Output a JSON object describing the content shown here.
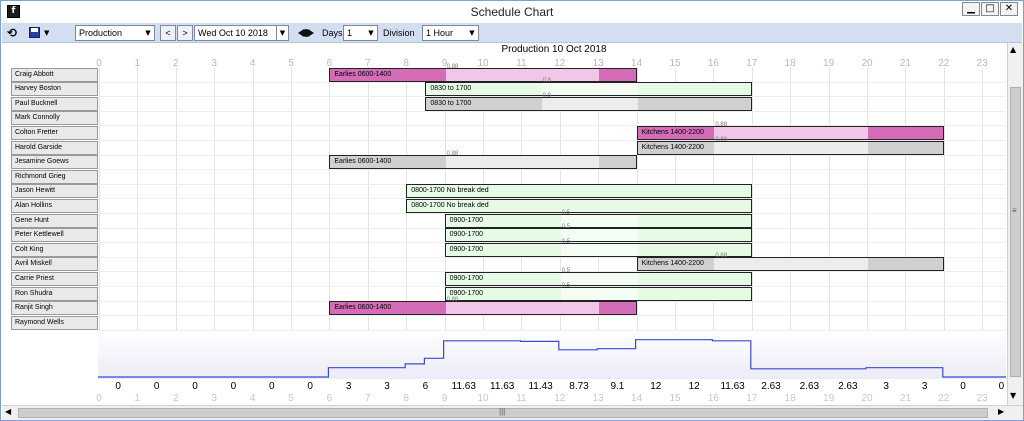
{
  "window": {
    "title": "Schedule Chart",
    "app_icon": "f"
  },
  "toolbar": {
    "department": "Production",
    "date": "Wed  Oct 10 2018",
    "days_label": "Days",
    "days_value": "1",
    "division_label": "Division",
    "division_value": "1 Hour",
    "prev_label": "<",
    "next_label": ">"
  },
  "icons": [
    "refresh-icon",
    "save-icon",
    "calendar-icon",
    "today-icon",
    "minimize-icon",
    "maximize-icon",
    "close-icon"
  ],
  "chart_title": "Production 10 Oct 2018",
  "hours": [
    "0",
    "1",
    "2",
    "3",
    "4",
    "5",
    "6",
    "7",
    "8",
    "9",
    "10",
    "11",
    "12",
    "13",
    "14",
    "15",
    "16",
    "17",
    "18",
    "19",
    "20",
    "21",
    "22",
    "23"
  ],
  "employees": [
    "Craig Abbott",
    "Harvey Boston",
    "Paul Bucknell",
    "Mark Connolly",
    "Colton Fretter",
    "Harold Garside",
    "Jesamine Goews",
    "Richmond Grieg",
    "Jason Hewitt",
    "Alan Hollins",
    "Gene Hunt",
    "Peter Kettlewell",
    "Colt King",
    "Avril Miskell",
    "Carrie Priest",
    "Ron Shudra",
    "Ranjit Singh",
    "Raymond Wells"
  ],
  "colors": {
    "pink": "#d46cb8",
    "pink_light": "#f2c6e6",
    "green": "#e6fbe6",
    "green_light": "#f4fdf4",
    "grey": "#d0d0d0",
    "grey_light": "#ececec",
    "staff_line": "#3a4ad8"
  },
  "shifts": [
    {
      "row": 0,
      "start": 6,
      "end": 14,
      "label": "Earlies 0600-1400",
      "style": "pink",
      "break_start": 9,
      "break_end": 13,
      "break_label": "0.88"
    },
    {
      "row": 1,
      "start": 8.5,
      "end": 17,
      "label": "0830 to 1700",
      "style": "green",
      "break_start": 11.5,
      "break_end": 14,
      "break_label": "0.8"
    },
    {
      "row": 2,
      "start": 8.5,
      "end": 17,
      "label": "0830 to 1700",
      "style": "grey",
      "break_start": 11.5,
      "break_end": 14,
      "break_label": "0.8"
    },
    {
      "row": 4,
      "start": 14,
      "end": 22,
      "label": "Kitchens 1400-2200",
      "style": "pink",
      "break_start": 16,
      "break_end": 20,
      "break_label": "0.88"
    },
    {
      "row": 5,
      "start": 14,
      "end": 22,
      "label": "Kitchens 1400-2200",
      "style": "grey",
      "break_start": 16,
      "break_end": 20,
      "break_label": "0.88"
    },
    {
      "row": 6,
      "start": 6,
      "end": 14,
      "label": "Earlies 0600-1400",
      "style": "grey",
      "break_start": 9,
      "break_end": 13,
      "break_label": "0.88"
    },
    {
      "row": 8,
      "start": 8,
      "end": 17,
      "label": "0800-1700 No break ded",
      "style": "green",
      "break_start": null,
      "break_end": null,
      "break_label": ""
    },
    {
      "row": 9,
      "start": 8,
      "end": 17,
      "label": "0800-1700 No break ded",
      "style": "green",
      "break_start": null,
      "break_end": null,
      "break_label": ""
    },
    {
      "row": 10,
      "start": 9,
      "end": 17,
      "label": "0900-1700",
      "style": "green",
      "break_start": 12,
      "break_end": 14,
      "break_label": "0.5"
    },
    {
      "row": 11,
      "start": 9,
      "end": 17,
      "label": "0900-1700",
      "style": "green",
      "break_start": 12,
      "break_end": 14,
      "break_label": "0.5"
    },
    {
      "row": 12,
      "start": 9,
      "end": 17,
      "label": "0900-1700",
      "style": "green",
      "break_start": 12,
      "break_end": 14,
      "break_label": "0.5"
    },
    {
      "row": 13,
      "start": 14,
      "end": 22,
      "label": "Kitchens 1400-2200",
      "style": "grey",
      "break_start": 16,
      "break_end": 20,
      "break_label": "0.88"
    },
    {
      "row": 14,
      "start": 9,
      "end": 17,
      "label": "0900-1700",
      "style": "green",
      "break_start": 12,
      "break_end": 14,
      "break_label": "0.5"
    },
    {
      "row": 15,
      "start": 9,
      "end": 17,
      "label": "0900-1700",
      "style": "green",
      "break_start": 12,
      "break_end": 14,
      "break_label": "0.5"
    },
    {
      "row": 16,
      "start": 6,
      "end": 14,
      "label": "Earlies 0600-1400",
      "style": "pink",
      "break_start": 9,
      "break_end": 13,
      "break_label": "0.88"
    }
  ],
  "staff_counts": [
    "0",
    "0",
    "0",
    "0",
    "0",
    "0",
    "3",
    "3",
    "6",
    "11.63",
    "11.63",
    "11.43",
    "8.73",
    "9.1",
    "12",
    "12",
    "11.63",
    "2.63",
    "2.63",
    "2.63",
    "3",
    "3",
    "0",
    "0"
  ],
  "staff_curve": [
    [
      0,
      0
    ],
    [
      6,
      0
    ],
    [
      6,
      3
    ],
    [
      8,
      3
    ],
    [
      8,
      4.2
    ],
    [
      8.5,
      4.2
    ],
    [
      8.5,
      6
    ],
    [
      9,
      6
    ],
    [
      9,
      11.63
    ],
    [
      11,
      11.63
    ],
    [
      11,
      11.43
    ],
    [
      12,
      11.43
    ],
    [
      12,
      8.73
    ],
    [
      13,
      8.73
    ],
    [
      13,
      9.1
    ],
    [
      14,
      9.1
    ],
    [
      14,
      12
    ],
    [
      16,
      12
    ],
    [
      16,
      11.63
    ],
    [
      17,
      11.63
    ],
    [
      17,
      2.63
    ],
    [
      20,
      2.63
    ],
    [
      20,
      3
    ],
    [
      22,
      3
    ],
    [
      22,
      0
    ],
    [
      24,
      0
    ]
  ]
}
